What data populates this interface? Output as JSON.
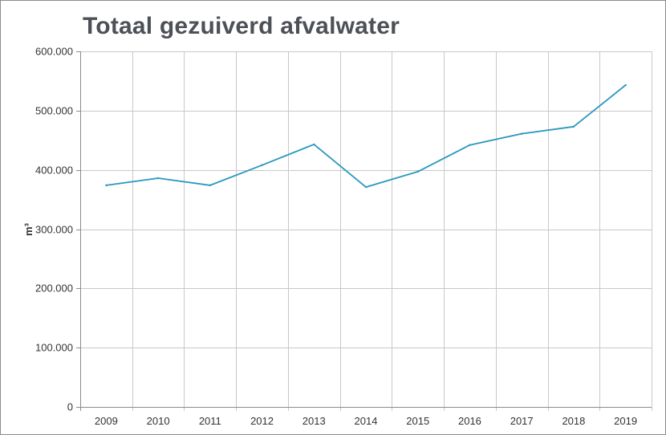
{
  "chart_data": {
    "type": "line",
    "title": "Totaal gezuiverd afvalwater",
    "ylabel": "m³",
    "xlabel": "",
    "categories": [
      "2009",
      "2010",
      "2011",
      "2012",
      "2013",
      "2014",
      "2015",
      "2016",
      "2017",
      "2018",
      "2019"
    ],
    "series": [
      {
        "values": [
          374000,
          386000,
          374000,
          408000,
          443000,
          371000,
          397000,
          442000,
          461000,
          473000,
          543000
        ],
        "color": "#2a97bf"
      }
    ],
    "ylim": [
      0,
      600000
    ],
    "yticks": [
      0,
      100000,
      200000,
      300000,
      400000,
      500000,
      600000
    ],
    "ytick_labels": [
      "0",
      "100.000",
      "200.000",
      "300.000",
      "400.000",
      "500.000",
      "600.000"
    ],
    "grid": true,
    "legend": "none"
  }
}
